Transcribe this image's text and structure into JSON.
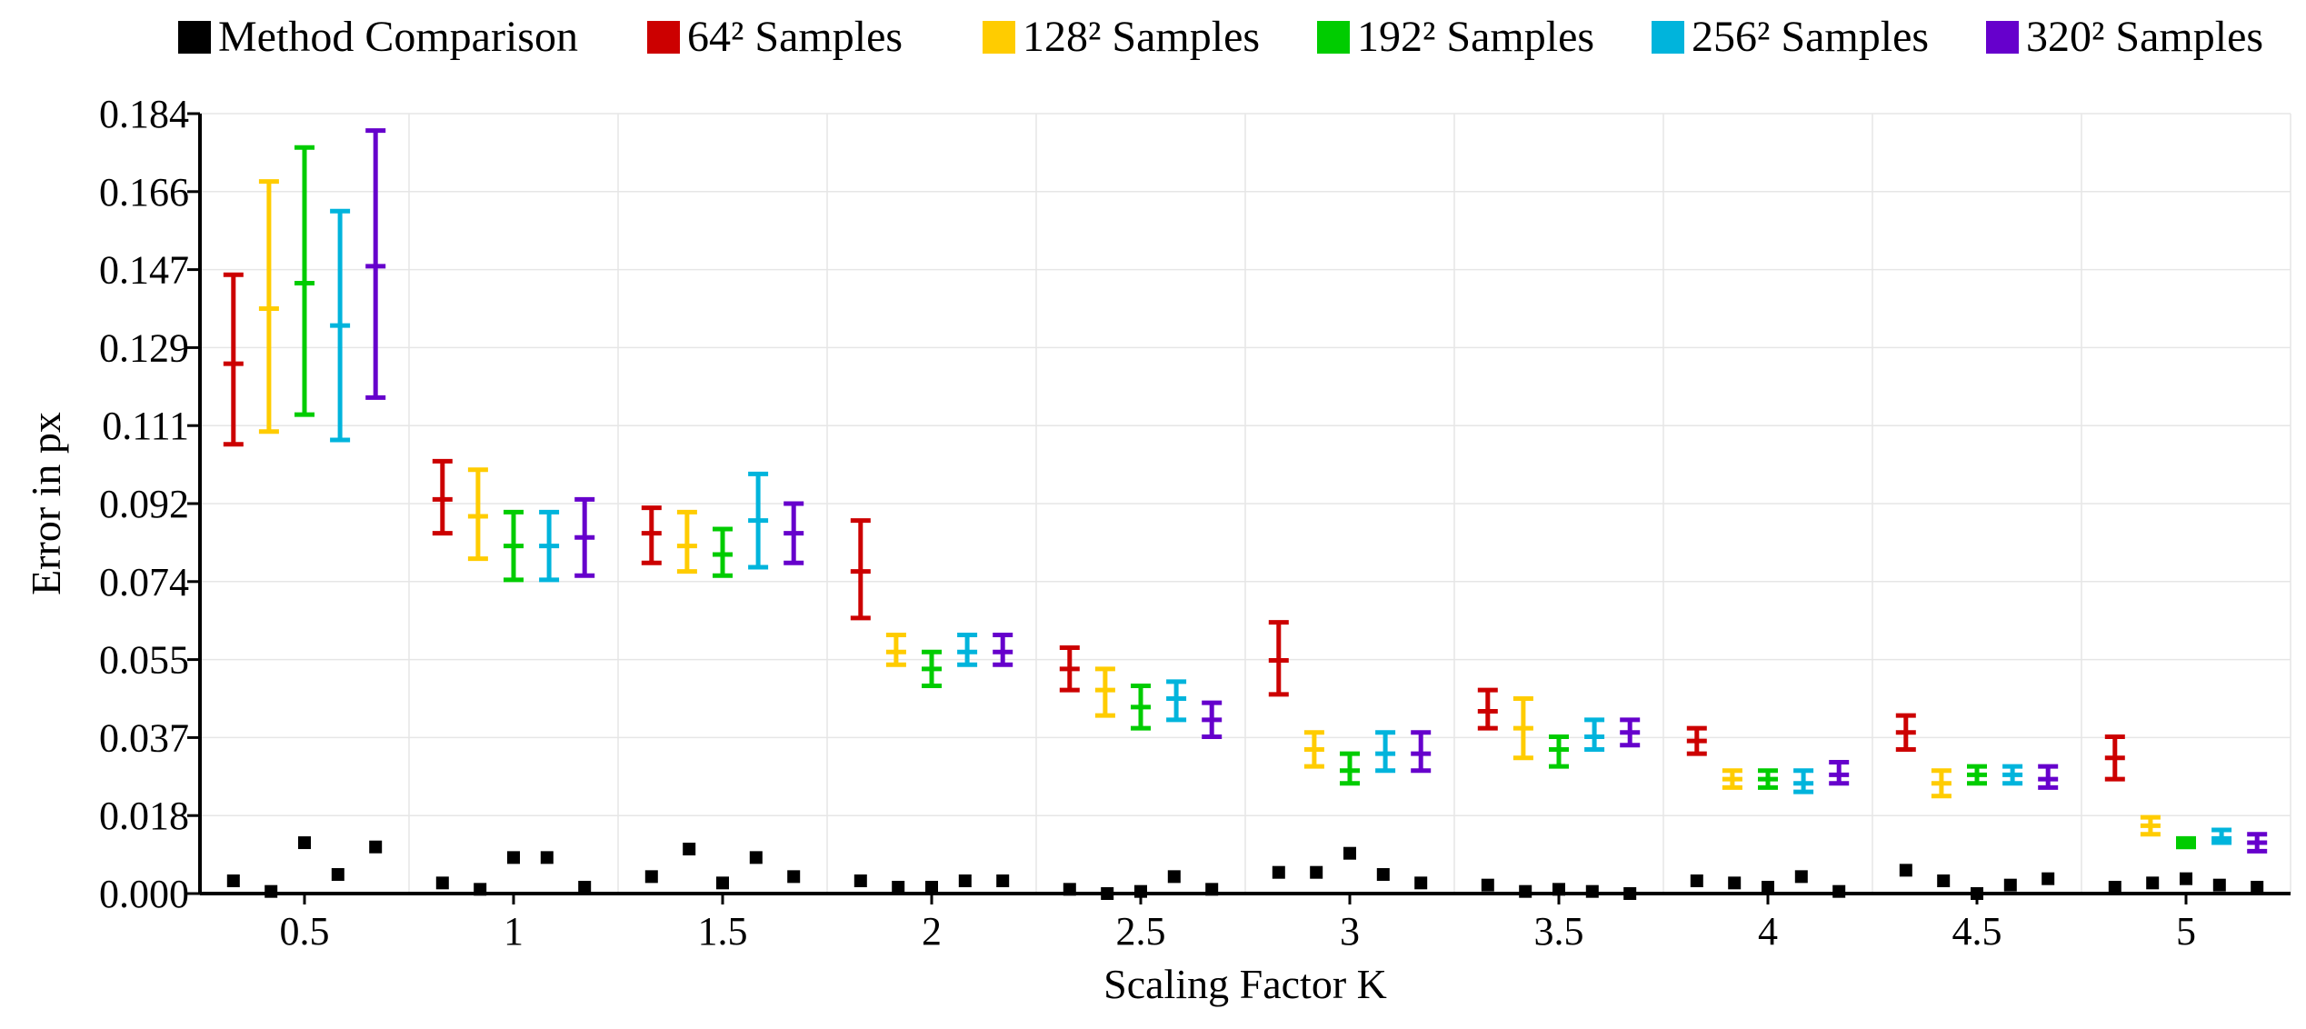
{
  "chart_data": {
    "type": "errorbar",
    "title": "",
    "xlabel": "Scaling Factor K",
    "ylabel": "Error in px",
    "categories": [
      "0.5",
      "1",
      "1.5",
      "2",
      "2.5",
      "3",
      "3.5",
      "4",
      "4.5",
      "5"
    ],
    "x_values": [
      0.5,
      1,
      1.5,
      2,
      2.5,
      3,
      3.5,
      4,
      4.5,
      5
    ],
    "y_ticks": [
      "0.000",
      "0.018",
      "0.037",
      "0.055",
      "0.074",
      "0.092",
      "0.111",
      "0.129",
      "0.147",
      "0.166",
      "0.184"
    ],
    "ylim": [
      0,
      0.184
    ],
    "xlim": [
      0.25,
      5.25
    ],
    "grid": true,
    "legend_position": "top",
    "series": [
      {
        "name": "Method Comparison",
        "kind": "points",
        "color": "#000000",
        "points": [
          [
            0.33,
            0.003
          ],
          [
            0.42,
            0.0005
          ],
          [
            0.5,
            0.012
          ],
          [
            0.58,
            0.0045
          ],
          [
            0.67,
            0.011
          ],
          [
            0.83,
            0.0025
          ],
          [
            0.92,
            0.001
          ],
          [
            1.0,
            0.0085
          ],
          [
            1.08,
            0.0085
          ],
          [
            1.17,
            0.0015
          ],
          [
            1.33,
            0.004
          ],
          [
            1.42,
            0.0105
          ],
          [
            1.5,
            0.0025
          ],
          [
            1.58,
            0.0085
          ],
          [
            1.67,
            0.004
          ],
          [
            1.83,
            0.003
          ],
          [
            1.92,
            0.0015
          ],
          [
            2.0,
            0.0015
          ],
          [
            2.08,
            0.003
          ],
          [
            2.17,
            0.003
          ],
          [
            2.33,
            0.001
          ],
          [
            2.42,
            0.0
          ],
          [
            2.5,
            0.0005
          ],
          [
            2.58,
            0.004
          ],
          [
            2.67,
            0.001
          ],
          [
            2.83,
            0.005
          ],
          [
            2.92,
            0.005
          ],
          [
            3.0,
            0.0095
          ],
          [
            3.08,
            0.0045
          ],
          [
            3.17,
            0.0025
          ],
          [
            3.33,
            0.002
          ],
          [
            3.42,
            0.0005
          ],
          [
            3.5,
            0.001
          ],
          [
            3.58,
            0.0005
          ],
          [
            3.67,
            0.0
          ],
          [
            3.83,
            0.003
          ],
          [
            3.92,
            0.0025
          ],
          [
            4.0,
            0.0015
          ],
          [
            4.08,
            0.004
          ],
          [
            4.17,
            0.0005
          ],
          [
            4.33,
            0.0055
          ],
          [
            4.42,
            0.003
          ],
          [
            4.5,
            0.0
          ],
          [
            4.58,
            0.002
          ],
          [
            4.67,
            0.0035
          ],
          [
            4.83,
            0.0015
          ],
          [
            4.92,
            0.0025
          ],
          [
            5.0,
            0.0035
          ],
          [
            5.08,
            0.002
          ],
          [
            5.17,
            0.0015
          ]
        ]
      },
      {
        "name": "64² Samples",
        "kind": "errorbar",
        "color": "#cc0000",
        "offset": -0.17,
        "mean": [
          0.125,
          0.093,
          0.085,
          0.076,
          0.053,
          0.055,
          0.043,
          0.036,
          0.038,
          0.032
        ],
        "low": [
          0.106,
          0.085,
          0.078,
          0.065,
          0.048,
          0.047,
          0.039,
          0.033,
          0.034,
          0.027
        ],
        "high": [
          0.146,
          0.102,
          0.091,
          0.088,
          0.058,
          0.064,
          0.048,
          0.039,
          0.042,
          0.037
        ]
      },
      {
        "name": "128² Samples",
        "kind": "errorbar",
        "color": "#ffcc00",
        "offset": -0.085,
        "mean": [
          0.138,
          0.089,
          0.082,
          0.057,
          0.048,
          0.034,
          0.039,
          0.027,
          0.026,
          0.016
        ],
        "low": [
          0.109,
          0.079,
          0.076,
          0.054,
          0.042,
          0.03,
          0.032,
          0.025,
          0.023,
          0.014
        ],
        "high": [
          0.168,
          0.1,
          0.09,
          0.061,
          0.053,
          0.038,
          0.046,
          0.029,
          0.029,
          0.018
        ]
      },
      {
        "name": "192² Samples",
        "kind": "errorbar",
        "color": "#00cc00",
        "offset": 0.0,
        "mean": [
          0.144,
          0.082,
          0.08,
          0.053,
          0.044,
          0.029,
          0.034,
          0.027,
          0.028,
          0.012
        ],
        "low": [
          0.113,
          0.074,
          0.075,
          0.049,
          0.039,
          0.026,
          0.03,
          0.025,
          0.026,
          0.011
        ],
        "high": [
          0.176,
          0.09,
          0.086,
          0.057,
          0.049,
          0.033,
          0.037,
          0.029,
          0.03,
          0.013
        ]
      },
      {
        "name": "256² Samples",
        "kind": "errorbar",
        "color": "#00b4dc",
        "offset": 0.085,
        "mean": [
          0.134,
          0.082,
          0.088,
          0.057,
          0.046,
          0.033,
          0.037,
          0.026,
          0.028,
          0.013
        ],
        "low": [
          0.107,
          0.074,
          0.077,
          0.054,
          0.041,
          0.029,
          0.034,
          0.024,
          0.026,
          0.012
        ],
        "high": [
          0.161,
          0.09,
          0.099,
          0.061,
          0.05,
          0.038,
          0.041,
          0.029,
          0.03,
          0.015
        ]
      },
      {
        "name": "320² Samples",
        "kind": "errorbar",
        "color": "#6600cc",
        "offset": 0.17,
        "mean": [
          0.148,
          0.084,
          0.085,
          0.057,
          0.041,
          0.033,
          0.038,
          0.028,
          0.027,
          0.012
        ],
        "low": [
          0.117,
          0.075,
          0.078,
          0.054,
          0.037,
          0.029,
          0.035,
          0.026,
          0.025,
          0.01
        ],
        "high": [
          0.18,
          0.093,
          0.092,
          0.061,
          0.045,
          0.038,
          0.041,
          0.031,
          0.03,
          0.014
        ]
      }
    ]
  }
}
